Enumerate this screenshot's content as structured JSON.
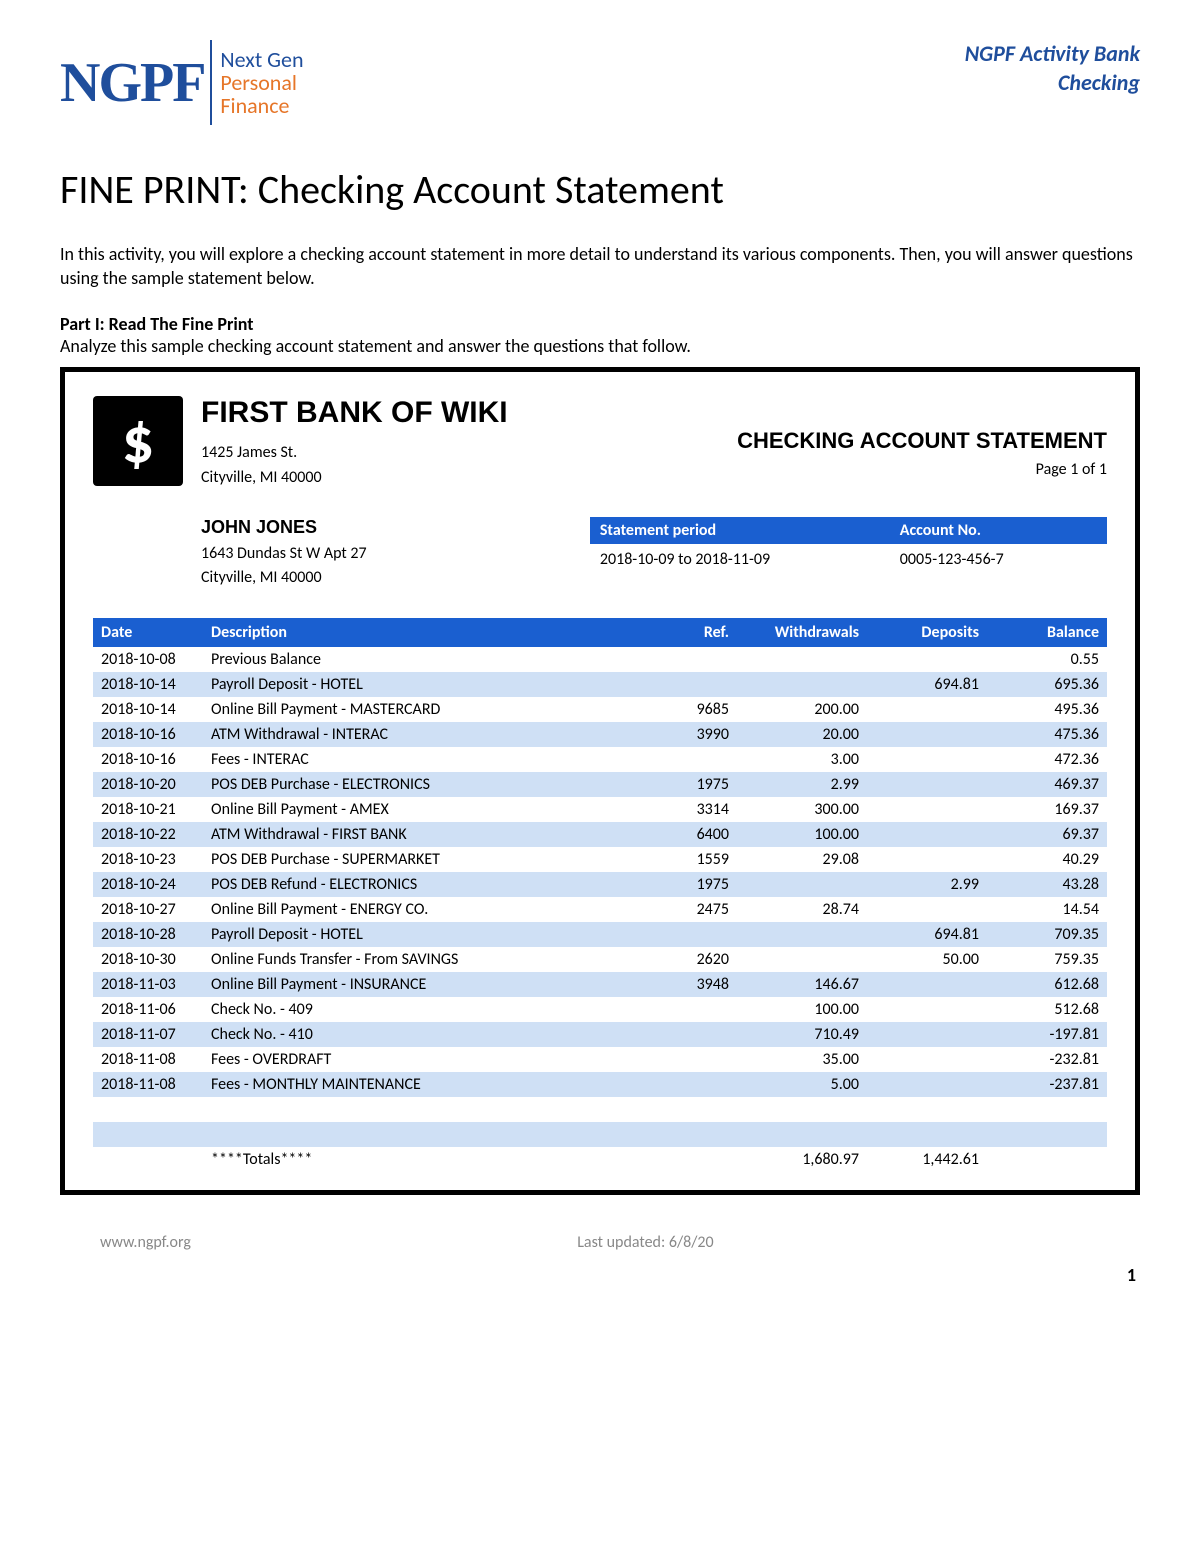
{
  "header": {
    "logo_text": "NGPF",
    "tagline_1": "Next Gen",
    "tagline_2": "Personal",
    "tagline_3": "Finance",
    "right_line_1": "NGPF Activity Bank",
    "right_line_2": "Checking"
  },
  "title": "FINE PRINT: Checking Account Statement",
  "intro": "In this activity, you will explore a checking account statement in more detail to understand its various components. Then, you will answer questions using the sample statement below.",
  "part": {
    "label": "Part I: Read The Fine Print",
    "instr": "Analyze this sample checking account statement and answer the questions that follow."
  },
  "statement": {
    "bank_name": "FIRST BANK OF WIKI",
    "bank_addr_1": "1425 James St.",
    "bank_addr_2": "Cityville, MI 40000",
    "stmt_title": "CHECKING ACCOUNT STATEMENT",
    "stmt_page": "Page 1 of 1",
    "customer_name": "JOHN JONES",
    "customer_addr_1": "1643 Dundas St W Apt 27",
    "customer_addr_2": "Cityville, MI 40000",
    "meta_period_label": "Statement period",
    "meta_account_label": "Account No.",
    "meta_period_value": "2018-10-09 to 2018-11-09",
    "meta_account_value": "0005-123-456-7",
    "columns": {
      "date": "Date",
      "description": "Description",
      "ref": "Ref.",
      "withdrawals": "Withdrawals",
      "deposits": "Deposits",
      "balance": "Balance"
    },
    "rows": [
      {
        "date": "2018-10-08",
        "desc": "Previous Balance",
        "ref": "",
        "wd": "",
        "dep": "",
        "bal": "0.55"
      },
      {
        "date": "2018-10-14",
        "desc": "Payroll Deposit - HOTEL",
        "ref": "",
        "wd": "",
        "dep": "694.81",
        "bal": "695.36"
      },
      {
        "date": "2018-10-14",
        "desc": "Online Bill Payment - MASTERCARD",
        "ref": "9685",
        "wd": "200.00",
        "dep": "",
        "bal": "495.36"
      },
      {
        "date": "2018-10-16",
        "desc": "ATM Withdrawal - INTERAC",
        "ref": "3990",
        "wd": "20.00",
        "dep": "",
        "bal": "475.36"
      },
      {
        "date": "2018-10-16",
        "desc": "Fees - INTERAC",
        "ref": "",
        "wd": "3.00",
        "dep": "",
        "bal": "472.36"
      },
      {
        "date": "2018-10-20",
        "desc": "POS DEB Purchase - ELECTRONICS",
        "ref": "1975",
        "wd": "2.99",
        "dep": "",
        "bal": "469.37"
      },
      {
        "date": "2018-10-21",
        "desc": "Online Bill Payment - AMEX",
        "ref": "3314",
        "wd": "300.00",
        "dep": "",
        "bal": "169.37"
      },
      {
        "date": "2018-10-22",
        "desc": "ATM Withdrawal - FIRST BANK",
        "ref": "6400",
        "wd": "100.00",
        "dep": "",
        "bal": "69.37"
      },
      {
        "date": "2018-10-23",
        "desc": "POS DEB Purchase - SUPERMARKET",
        "ref": "1559",
        "wd": "29.08",
        "dep": "",
        "bal": "40.29"
      },
      {
        "date": "2018-10-24",
        "desc": "POS DEB Refund - ELECTRONICS",
        "ref": "1975",
        "wd": "",
        "dep": "2.99",
        "bal": "43.28"
      },
      {
        "date": "2018-10-27",
        "desc": "Online Bill Payment - ENERGY CO.",
        "ref": "2475",
        "wd": "28.74",
        "dep": "",
        "bal": "14.54"
      },
      {
        "date": "2018-10-28",
        "desc": "Payroll Deposit - HOTEL",
        "ref": "",
        "wd": "",
        "dep": "694.81",
        "bal": "709.35"
      },
      {
        "date": "2018-10-30",
        "desc": "Online Funds Transfer - From SAVINGS",
        "ref": "2620",
        "wd": "",
        "dep": "50.00",
        "bal": "759.35"
      },
      {
        "date": "2018-11-03",
        "desc": "Online Bill Payment - INSURANCE",
        "ref": "3948",
        "wd": "146.67",
        "dep": "",
        "bal": "612.68"
      },
      {
        "date": "2018-11-06",
        "desc": "Check No. - 409",
        "ref": "",
        "wd": "100.00",
        "dep": "",
        "bal": "512.68"
      },
      {
        "date": "2018-11-07",
        "desc": "Check No. - 410",
        "ref": "",
        "wd": "710.49",
        "dep": "",
        "bal": "-197.81"
      },
      {
        "date": "2018-11-08",
        "desc": "Fees - OVERDRAFT",
        "ref": "",
        "wd": "35.00",
        "dep": "",
        "bal": "-232.81"
      },
      {
        "date": "2018-11-08",
        "desc": "Fees - MONTHLY MAINTENANCE",
        "ref": "",
        "wd": "5.00",
        "dep": "",
        "bal": "-237.81"
      }
    ],
    "totals_label": "****Totals****",
    "totals_wd": "1,680.97",
    "totals_dep": "1,442.61"
  },
  "footer": {
    "url": "www.ngpf.org",
    "updated": "Last updated: 6/8/20",
    "page_num": "1"
  },
  "colors": {
    "brand_blue": "#1f4e9c",
    "brand_orange": "#e67629",
    "table_header": "#1a5fd0",
    "row_stripe": "#cfe0f5"
  }
}
